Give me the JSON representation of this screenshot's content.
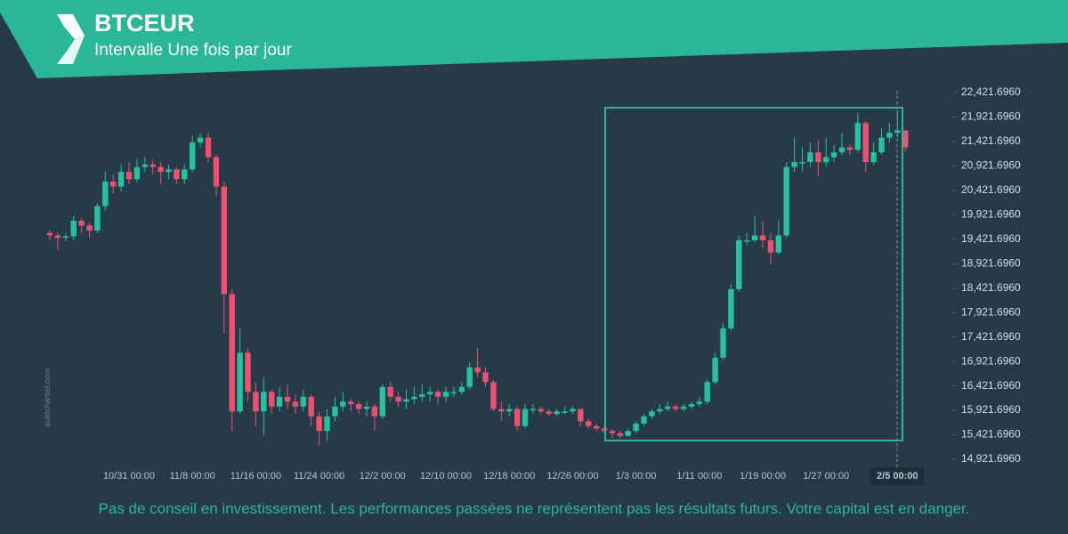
{
  "header": {
    "title": "BTCEUR",
    "subtitle": "Intervalle Une fois par jour"
  },
  "watermark": "autochartist.com",
  "footer": "Pas de conseil en investissement. Les performances passées ne représentent pas les résultats futurs. Votre capital est en danger.",
  "chart_data": {
    "type": "candlestick",
    "categories": [
      null,
      null,
      null,
      null,
      null,
      null,
      null,
      null,
      null,
      null,
      "10/31 00:00",
      null,
      null,
      null,
      null,
      null,
      null,
      null,
      "11/8 00:00",
      null,
      null,
      null,
      null,
      null,
      null,
      null,
      "11/16 00:00",
      null,
      null,
      null,
      null,
      null,
      null,
      null,
      "11/24 00:00",
      null,
      null,
      null,
      null,
      null,
      null,
      null,
      "12/2 00:00",
      null,
      null,
      null,
      null,
      null,
      null,
      null,
      "12/10 00:00",
      null,
      null,
      null,
      null,
      null,
      null,
      null,
      "12/18 00:00",
      null,
      null,
      null,
      null,
      null,
      null,
      null,
      "12/26 00:00",
      null,
      null,
      null,
      null,
      null,
      null,
      null,
      "1/3 00:00",
      null,
      null,
      null,
      null,
      null,
      null,
      null,
      "1/11 00:00",
      null,
      null,
      null,
      null,
      null,
      null,
      null,
      "1/19 00:00",
      null,
      null,
      null,
      null,
      null,
      null,
      null,
      "1/27 00:00",
      null,
      null,
      null,
      null,
      null,
      null,
      null,
      null,
      "2/5 00:00",
      null
    ],
    "open": [
      19550,
      19500,
      19450,
      19480,
      19800,
      19700,
      19600,
      20100,
      20600,
      20500,
      20800,
      20650,
      20900,
      20950,
      20900,
      20800,
      20850,
      20650,
      20850,
      21400,
      21500,
      21100,
      20500,
      18300,
      15900,
      17100,
      16300,
      15900,
      16300,
      16000,
      16200,
      16100,
      16000,
      16200,
      15800,
      15500,
      15800,
      16000,
      16100,
      16050,
      15950,
      16000,
      15800,
      16400,
      16200,
      16100,
      16150,
      16200,
      16250,
      16300,
      16200,
      16300,
      16300,
      16400,
      16800,
      16700,
      16500,
      15950,
      15900,
      15950,
      15600,
      15950,
      15950,
      15900,
      15850,
      15900,
      15900,
      15950,
      15700,
      15600,
      15550,
      15500,
      15450,
      15400,
      15500,
      15650,
      15800,
      15900,
      15950,
      16000,
      15950,
      16000,
      16050,
      16100,
      16500,
      17000,
      17600,
      18400,
      19400,
      19400,
      19500,
      19400,
      19150,
      19500,
      20900,
      21000,
      21000,
      21200,
      21000,
      21100,
      21200,
      21300,
      21250,
      21800,
      21000,
      21200,
      21500,
      21600,
      21650
    ],
    "high": [
      19600,
      19550,
      19550,
      19900,
      19850,
      19750,
      20150,
      20800,
      20750,
      20950,
      21000,
      21050,
      21100,
      21050,
      21000,
      20950,
      20900,
      20950,
      21550,
      21600,
      21600,
      21150,
      20600,
      18400,
      17600,
      17200,
      16500,
      16600,
      16350,
      16400,
      16450,
      16250,
      16350,
      16250,
      15900,
      15950,
      16200,
      16300,
      16150,
      16100,
      16100,
      16050,
      16450,
      16500,
      16300,
      16350,
      16400,
      16450,
      16400,
      16350,
      16400,
      16400,
      16500,
      16900,
      17200,
      16800,
      16550,
      16100,
      16050,
      16000,
      16050,
      16050,
      16000,
      15950,
      15950,
      16000,
      16000,
      15950,
      15750,
      15650,
      15600,
      15550,
      15500,
      15550,
      15700,
      15850,
      15950,
      16050,
      16100,
      16050,
      16050,
      16100,
      16200,
      16550,
      17100,
      17700,
      18500,
      19500,
      19550,
      19900,
      19800,
      19550,
      19800,
      21000,
      21500,
      21300,
      21400,
      21450,
      21500,
      21350,
      21600,
      21350,
      22000,
      21850,
      21400,
      21700,
      21800,
      22050,
      21600
    ],
    "low": [
      19400,
      19200,
      19380,
      19400,
      19550,
      19450,
      19550,
      20000,
      20350,
      20400,
      20550,
      20600,
      20800,
      20750,
      20550,
      20650,
      20550,
      20550,
      20800,
      21300,
      21000,
      20300,
      17500,
      15500,
      15850,
      16100,
      15600,
      15400,
      15850,
      15900,
      15950,
      15850,
      15900,
      15600,
      15200,
      15300,
      15700,
      15900,
      15900,
      15850,
      15800,
      15500,
      15750,
      16100,
      16000,
      15950,
      16050,
      16100,
      16100,
      16050,
      16100,
      16200,
      16250,
      16350,
      16600,
      16400,
      15900,
      15700,
      15800,
      15500,
      15550,
      15850,
      15850,
      15800,
      15800,
      15850,
      15850,
      15600,
      15550,
      15500,
      15450,
      15350,
      15350,
      15380,
      15450,
      15600,
      15750,
      15850,
      15900,
      15900,
      15900,
      15950,
      16000,
      16050,
      16450,
      16950,
      17550,
      18350,
      19300,
      19350,
      19250,
      18900,
      19100,
      19450,
      20800,
      20800,
      20900,
      20700,
      20900,
      21000,
      21150,
      21150,
      21200,
      20800,
      20950,
      21150,
      21400,
      21500,
      21200
    ],
    "close": [
      19500,
      19450,
      19480,
      19800,
      19700,
      19600,
      20100,
      20600,
      20500,
      20800,
      20650,
      20900,
      20950,
      20900,
      20800,
      20850,
      20650,
      20850,
      21400,
      21500,
      21100,
      20500,
      18300,
      15900,
      17100,
      16300,
      15900,
      16300,
      16000,
      16200,
      16100,
      16000,
      16200,
      15800,
      15500,
      15800,
      16000,
      16100,
      16050,
      15950,
      16000,
      15800,
      16400,
      16200,
      16100,
      16150,
      16200,
      16250,
      16300,
      16200,
      16300,
      16300,
      16400,
      16800,
      16700,
      16500,
      15950,
      15900,
      15950,
      15600,
      15950,
      15950,
      15900,
      15850,
      15900,
      15900,
      15950,
      15700,
      15600,
      15550,
      15500,
      15450,
      15400,
      15500,
      15650,
      15800,
      15900,
      15950,
      16000,
      15950,
      16000,
      16050,
      16100,
      16500,
      17000,
      17600,
      18400,
      19400,
      19400,
      19500,
      19400,
      19150,
      19500,
      20900,
      21000,
      21000,
      21200,
      21000,
      21100,
      21200,
      21300,
      21250,
      21800,
      21000,
      21200,
      21500,
      21600,
      21650,
      21300
    ],
    "up_color": "#26c29e",
    "down_color": "#f0506e",
    "ylim": [
      14667,
      22586
    ],
    "yticks": [
      {
        "value": 14921.696,
        "label": "14,921.6960"
      },
      {
        "value": 15421.696,
        "label": "15,421.6960"
      },
      {
        "value": 15921.696,
        "label": "15,921.6960"
      },
      {
        "value": 16421.696,
        "label": "16,421.6960"
      },
      {
        "value": 16921.696,
        "label": "16,921.6960"
      },
      {
        "value": 17421.696,
        "label": "17,421.6960"
      },
      {
        "value": 17921.696,
        "label": "17,921.6960"
      },
      {
        "value": 18421.696,
        "label": "18,421.6960"
      },
      {
        "value": 18921.696,
        "label": "18,921.6960"
      },
      {
        "value": 19421.696,
        "label": "19,421.6960"
      },
      {
        "value": 19921.696,
        "label": "19,921.6960"
      },
      {
        "value": 20421.696,
        "label": "20,421.6960"
      },
      {
        "value": 20921.696,
        "label": "20,921.6960"
      },
      {
        "value": 21421.696,
        "label": "21,421.6960"
      },
      {
        "value": 21921.696,
        "label": "21,921.6960"
      },
      {
        "value": 22421.696,
        "label": "22,421.6960"
      }
    ]
  }
}
